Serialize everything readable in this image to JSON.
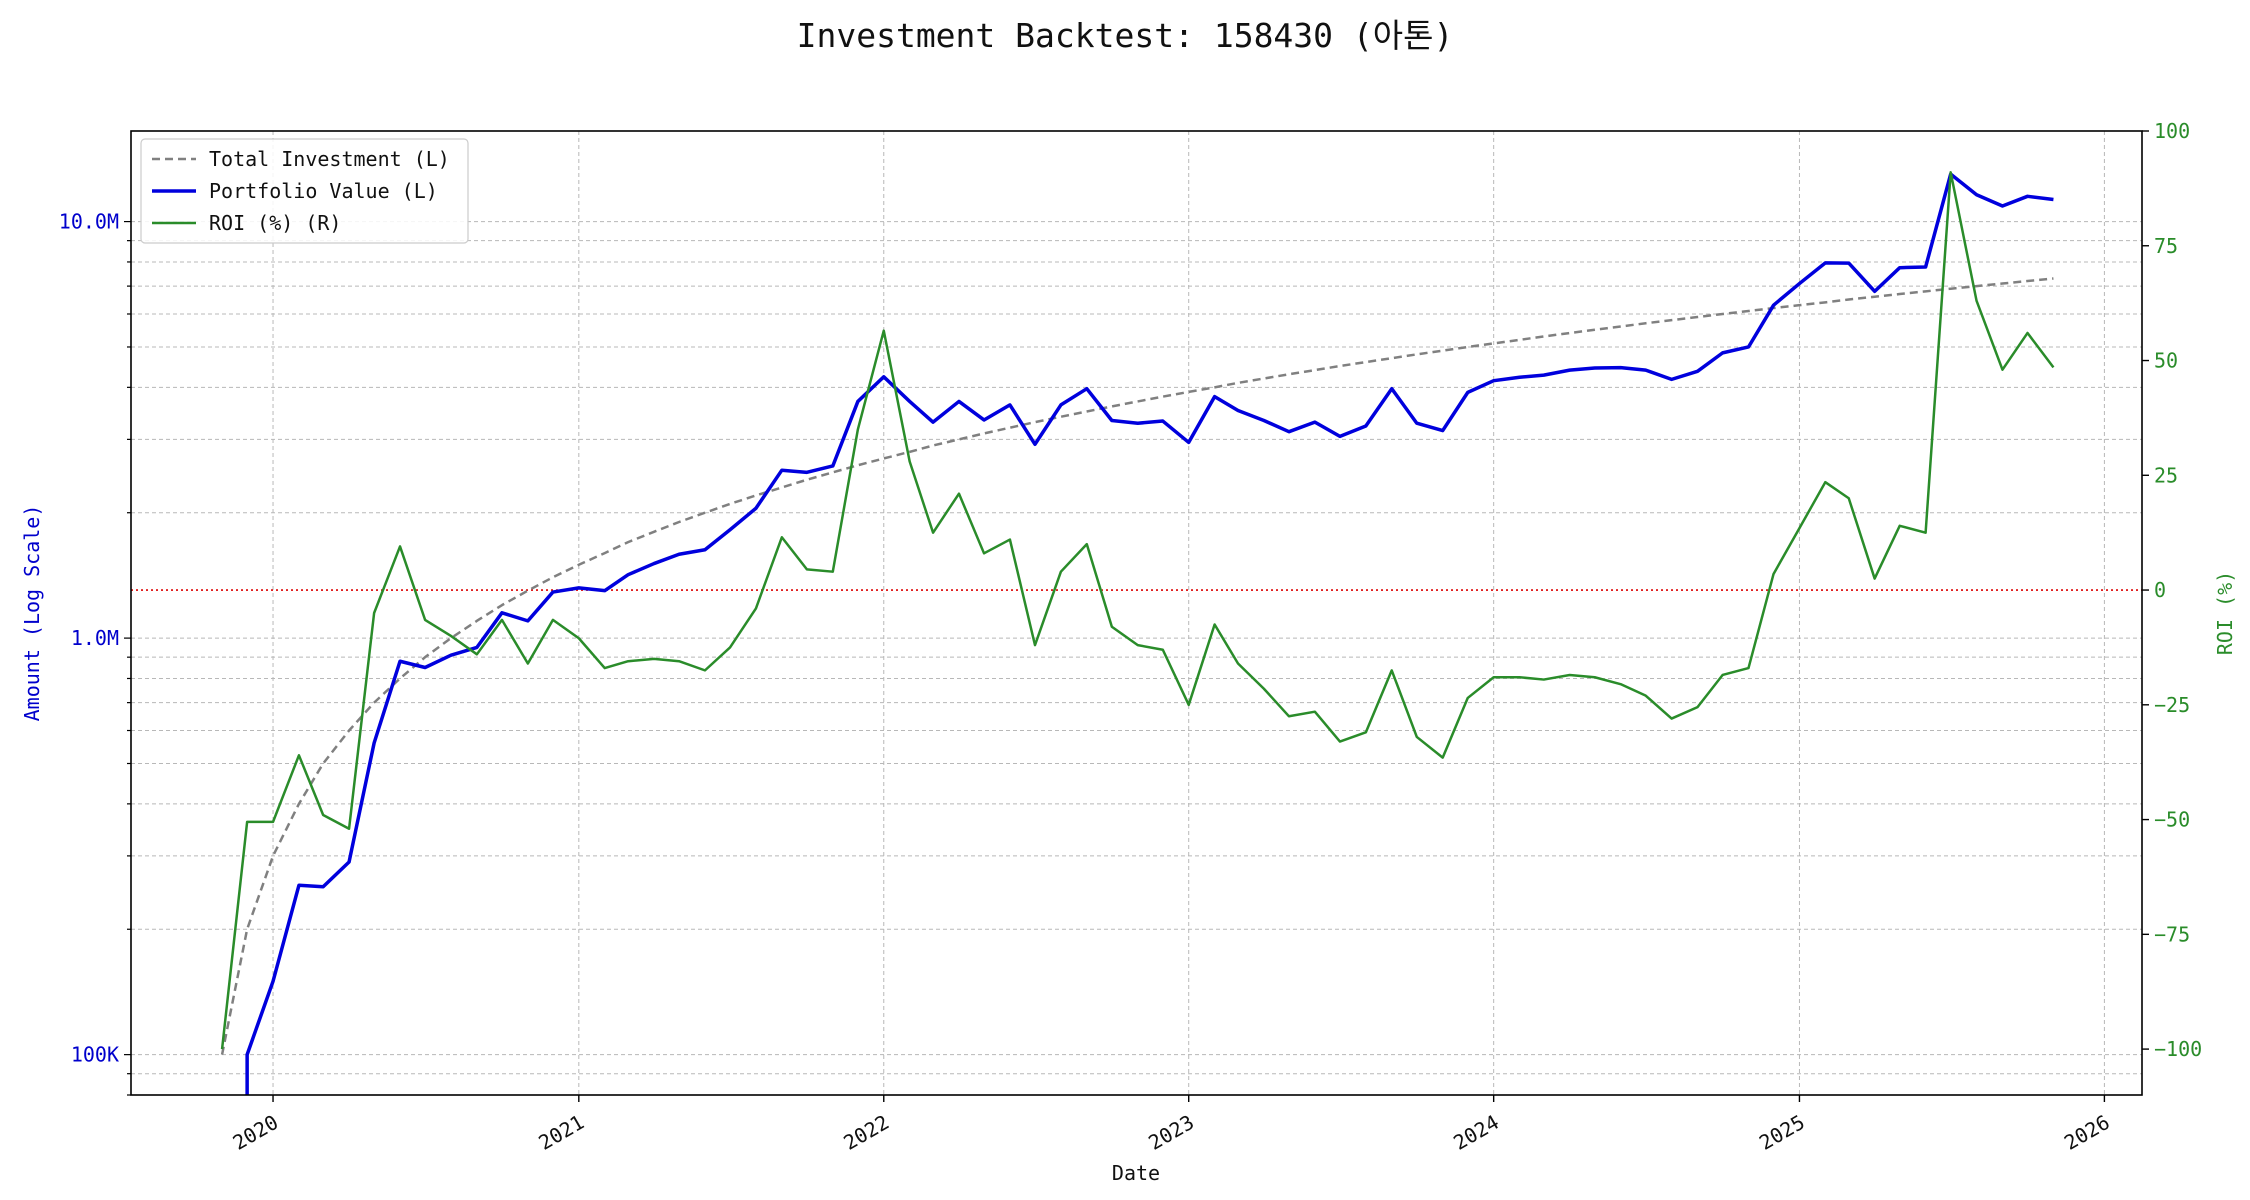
{
  "chart_data": {
    "type": "line",
    "title": "Investment Backtest: 158430 (아톤)",
    "xlabel": "Date",
    "ylabel_left": "Amount (Log Scale)",
    "ylabel_right": "ROI (%)",
    "left_scale": "log",
    "left_ylim": [
      80000,
      16500000
    ],
    "right_ylim": [
      -110,
      100
    ],
    "xlim": [
      "2019-07-15",
      "2026-02-15"
    ],
    "grid": true,
    "legend_position": "top-left",
    "x_ticks": [
      {
        "date": "2020-01-01",
        "label": "2020"
      },
      {
        "date": "2021-01-01",
        "label": "2021"
      },
      {
        "date": "2022-01-01",
        "label": "2022"
      },
      {
        "date": "2023-01-01",
        "label": "2023"
      },
      {
        "date": "2024-01-01",
        "label": "2024"
      },
      {
        "date": "2025-01-01",
        "label": "2025"
      },
      {
        "date": "2026-01-01",
        "label": "2026"
      }
    ],
    "left_ticks": [
      {
        "value": 100000,
        "label": "100K"
      },
      {
        "value": 1000000,
        "label": "1.0M"
      },
      {
        "value": 10000000,
        "label": "10.0M"
      }
    ],
    "right_ticks": [
      {
        "value": 100,
        "label": "100"
      },
      {
        "value": 75,
        "label": "75"
      },
      {
        "value": 50,
        "label": "50"
      },
      {
        "value": 25,
        "label": "25"
      },
      {
        "value": 0,
        "label": "0"
      },
      {
        "value": -25,
        "label": "−25"
      },
      {
        "value": -50,
        "label": "−50"
      },
      {
        "value": -75,
        "label": "−75"
      },
      {
        "value": -100,
        "label": "−100"
      }
    ],
    "x": [
      "2019-11-01",
      "2019-12-01",
      "2020-01-01",
      "2020-02-01",
      "2020-03-01",
      "2020-04-01",
      "2020-05-01",
      "2020-06-01",
      "2020-07-01",
      "2020-08-01",
      "2020-09-01",
      "2020-10-01",
      "2020-11-01",
      "2020-12-01",
      "2021-01-01",
      "2021-02-01",
      "2021-03-01",
      "2021-04-01",
      "2021-05-01",
      "2021-06-01",
      "2021-07-01",
      "2021-08-01",
      "2021-09-01",
      "2021-10-01",
      "2021-11-01",
      "2021-12-01",
      "2022-01-01",
      "2022-02-01",
      "2022-03-01",
      "2022-04-01",
      "2022-05-01",
      "2022-06-01",
      "2022-07-01",
      "2022-08-01",
      "2022-09-01",
      "2022-10-01",
      "2022-11-01",
      "2022-12-01",
      "2023-01-01",
      "2023-02-01",
      "2023-03-01",
      "2023-04-01",
      "2023-05-01",
      "2023-06-01",
      "2023-07-01",
      "2023-08-01",
      "2023-09-01",
      "2023-10-01",
      "2023-11-01",
      "2023-12-01",
      "2024-01-01",
      "2024-02-01",
      "2024-03-01",
      "2024-04-01",
      "2024-05-01",
      "2024-06-01",
      "2024-07-01",
      "2024-08-01",
      "2024-09-01",
      "2024-10-01",
      "2024-11-01",
      "2024-12-01",
      "2025-01-01",
      "2025-02-01",
      "2025-03-01",
      "2025-04-01",
      "2025-05-01",
      "2025-06-01",
      "2025-07-01",
      "2025-08-01",
      "2025-09-01",
      "2025-10-01",
      "2025-11-01"
    ],
    "series": [
      {
        "name": "Total Investment (L)",
        "axis": "left",
        "color": "#808080",
        "style": "dashed",
        "values": [
          100000,
          200000,
          300000,
          400000,
          500000,
          600000,
          700000,
          800000,
          900000,
          1000000,
          1100000,
          1200000,
          1300000,
          1400000,
          1500000,
          1600000,
          1700000,
          1800000,
          1900000,
          2000000,
          2100000,
          2200000,
          2300000,
          2400000,
          2500000,
          2600000,
          2700000,
          2800000,
          2900000,
          3000000,
          3100000,
          3200000,
          3300000,
          3400000,
          3500000,
          3600000,
          3700000,
          3800000,
          3900000,
          4000000,
          4100000,
          4200000,
          4300000,
          4400000,
          4500000,
          4600000,
          4700000,
          4800000,
          4900000,
          5000000,
          5100000,
          5200000,
          5300000,
          5400000,
          5500000,
          5600000,
          5700000,
          5800000,
          5900000,
          6000000,
          6100000,
          6200000,
          6300000,
          6400000,
          6500000,
          6600000,
          6700000,
          6800000,
          6900000,
          7000000,
          7100000,
          7200000,
          7300000
        ]
      },
      {
        "name": "Portfolio Value (L)",
        "axis": "left",
        "color": "#0000dd",
        "style": "solid",
        "values": [
          null,
          100000,
          150000,
          255000,
          253000,
          290000,
          560000,
          880000,
          850000,
          910000,
          950000,
          1150000,
          1100000,
          1290000,
          1320000,
          1300000,
          1420000,
          1510000,
          1590000,
          1630000,
          1820000,
          2050000,
          2530000,
          2500000,
          2590000,
          3700000,
          4240000,
          3700000,
          3300000,
          3700000,
          3340000,
          3630000,
          2920000,
          3630000,
          3970000,
          3330000,
          3280000,
          3320000,
          2950000,
          3800000,
          3520000,
          3330000,
          3130000,
          3300000,
          3050000,
          3230000,
          3970000,
          3280000,
          3150000,
          3890000,
          4150000,
          4230000,
          4280000,
          4400000,
          4450000,
          4460000,
          4400000,
          4180000,
          4370000,
          4840000,
          5000000,
          6300000,
          7100000,
          7960000,
          7950000,
          6800000,
          7750000,
          7780000,
          13000000,
          11600000,
          10900000,
          11500000,
          11300000
        ]
      },
      {
        "name": "ROI (%) (R)",
        "axis": "right",
        "color": "#2a8c2a",
        "style": "solid",
        "values": [
          -100,
          -50.5,
          -50.5,
          -36,
          -49,
          -52,
          -5,
          9.5,
          -6.5,
          -10,
          -14,
          -6.5,
          -16,
          -6.5,
          -10.5,
          -17,
          -15.5,
          -15,
          -15.5,
          -17.5,
          -12.5,
          -4,
          11.5,
          4.5,
          4,
          35,
          56.5,
          28,
          12.5,
          21,
          8,
          11,
          -12,
          4,
          10,
          -8,
          -12,
          -13,
          -25,
          -7.5,
          -16,
          -21.5,
          -27.5,
          -26.5,
          -33,
          -31,
          -17.5,
          -32,
          -36.5,
          -23.5,
          -19,
          -19,
          -19.5,
          -18.5,
          -19,
          -20.5,
          -23,
          -28,
          -25.5,
          -18.5,
          -17,
          3.5,
          13.5,
          23.5,
          20,
          2.5,
          14,
          12.5,
          91,
          63,
          48,
          56,
          48.5
        ]
      }
    ],
    "reference_lines": [
      {
        "axis": "right",
        "value": 0,
        "color": "#dd0000",
        "style": "dotted"
      }
    ]
  }
}
